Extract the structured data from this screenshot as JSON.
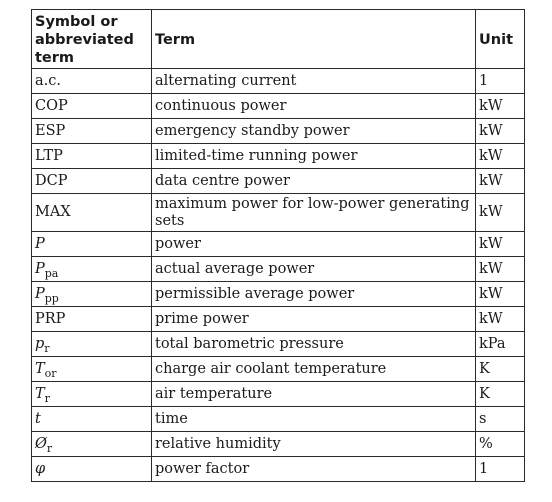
{
  "table": {
    "headers": {
      "symbol": "Symbol or abbreviated term",
      "term": "Term",
      "unit": "Unit"
    },
    "rows": [
      {
        "symbol": "a.c.",
        "sub": "",
        "italic": false,
        "term": "alternating current",
        "unit": "1"
      },
      {
        "symbol": "COP",
        "sub": "",
        "italic": false,
        "term": "continuous power",
        "unit": "kW"
      },
      {
        "symbol": "ESP",
        "sub": "",
        "italic": false,
        "term": "emergency standby power",
        "unit": "kW"
      },
      {
        "symbol": "LTP",
        "sub": "",
        "italic": false,
        "term": "limited-time running power",
        "unit": "kW"
      },
      {
        "symbol": "DCP",
        "sub": "",
        "italic": false,
        "term": "data centre power",
        "unit": "kW"
      },
      {
        "symbol": "MAX",
        "sub": "",
        "italic": false,
        "term": "maximum power for low-power generating sets",
        "unit": "kW"
      },
      {
        "symbol": "P",
        "sub": "",
        "italic": true,
        "term": "power",
        "unit": "kW"
      },
      {
        "symbol": "P",
        "sub": "pa",
        "italic": true,
        "term": "actual average power",
        "unit": "kW"
      },
      {
        "symbol": "P",
        "sub": "pp",
        "italic": true,
        "term": "permissible average power",
        "unit": "kW"
      },
      {
        "symbol": "PRP",
        "sub": "",
        "italic": false,
        "term": "prime power",
        "unit": "kW"
      },
      {
        "symbol": "p",
        "sub": "r",
        "italic": true,
        "term": "total barometric pressure",
        "unit": "kPa"
      },
      {
        "symbol": "T",
        "sub": "or",
        "italic": true,
        "term": "charge air coolant temperature",
        "unit": "K"
      },
      {
        "symbol": "T",
        "sub": "r",
        "italic": true,
        "term": "air temperature",
        "unit": "K"
      },
      {
        "symbol": "t",
        "sub": "",
        "italic": true,
        "term": "time",
        "unit": "s"
      },
      {
        "symbol": "Ø",
        "sub": "r",
        "italic": true,
        "term": "relative humidity",
        "unit": "%"
      },
      {
        "symbol": "φ",
        "sub": "",
        "italic": true,
        "term": "power factor",
        "unit": "1"
      }
    ]
  }
}
